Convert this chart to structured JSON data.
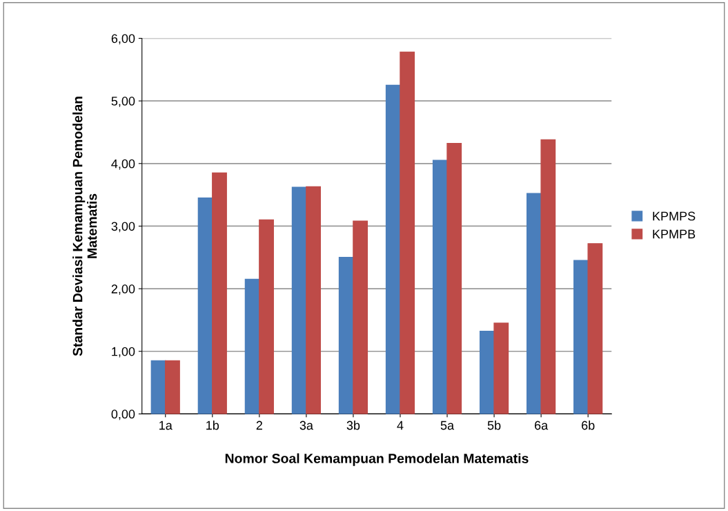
{
  "chart_data": {
    "type": "bar",
    "xlabel": "Nomor Soal Kemampuan Pemodelan Matematis",
    "ylabel": "Standar Deviasi Kemampuan Pemodelan\nMatematis",
    "categories": [
      "1a",
      "1b",
      "2",
      "3a",
      "3b",
      "4",
      "5a",
      "5b",
      "6a",
      "6b"
    ],
    "series": [
      {
        "name": "KPMPS",
        "color": "#4a7ebb",
        "values": [
          0.85,
          3.45,
          2.15,
          3.62,
          2.5,
          5.25,
          4.05,
          1.32,
          3.52,
          2.45
        ]
      },
      {
        "name": "KPMPB",
        "color": "#be4b48",
        "values": [
          0.85,
          3.85,
          3.1,
          3.63,
          3.08,
          5.78,
          4.32,
          1.45,
          4.38,
          2.72
        ]
      }
    ],
    "ylim": [
      0,
      6
    ],
    "yticks": [
      {
        "value": 0,
        "label": "0,00"
      },
      {
        "value": 1,
        "label": "1,00"
      },
      {
        "value": 2,
        "label": "2,00"
      },
      {
        "value": 3,
        "label": "3,00"
      },
      {
        "value": 4,
        "label": "4,00"
      },
      {
        "value": 5,
        "label": "5,00"
      },
      {
        "value": 6,
        "label": "6,00"
      }
    ],
    "grid": "y",
    "legend": "right"
  }
}
